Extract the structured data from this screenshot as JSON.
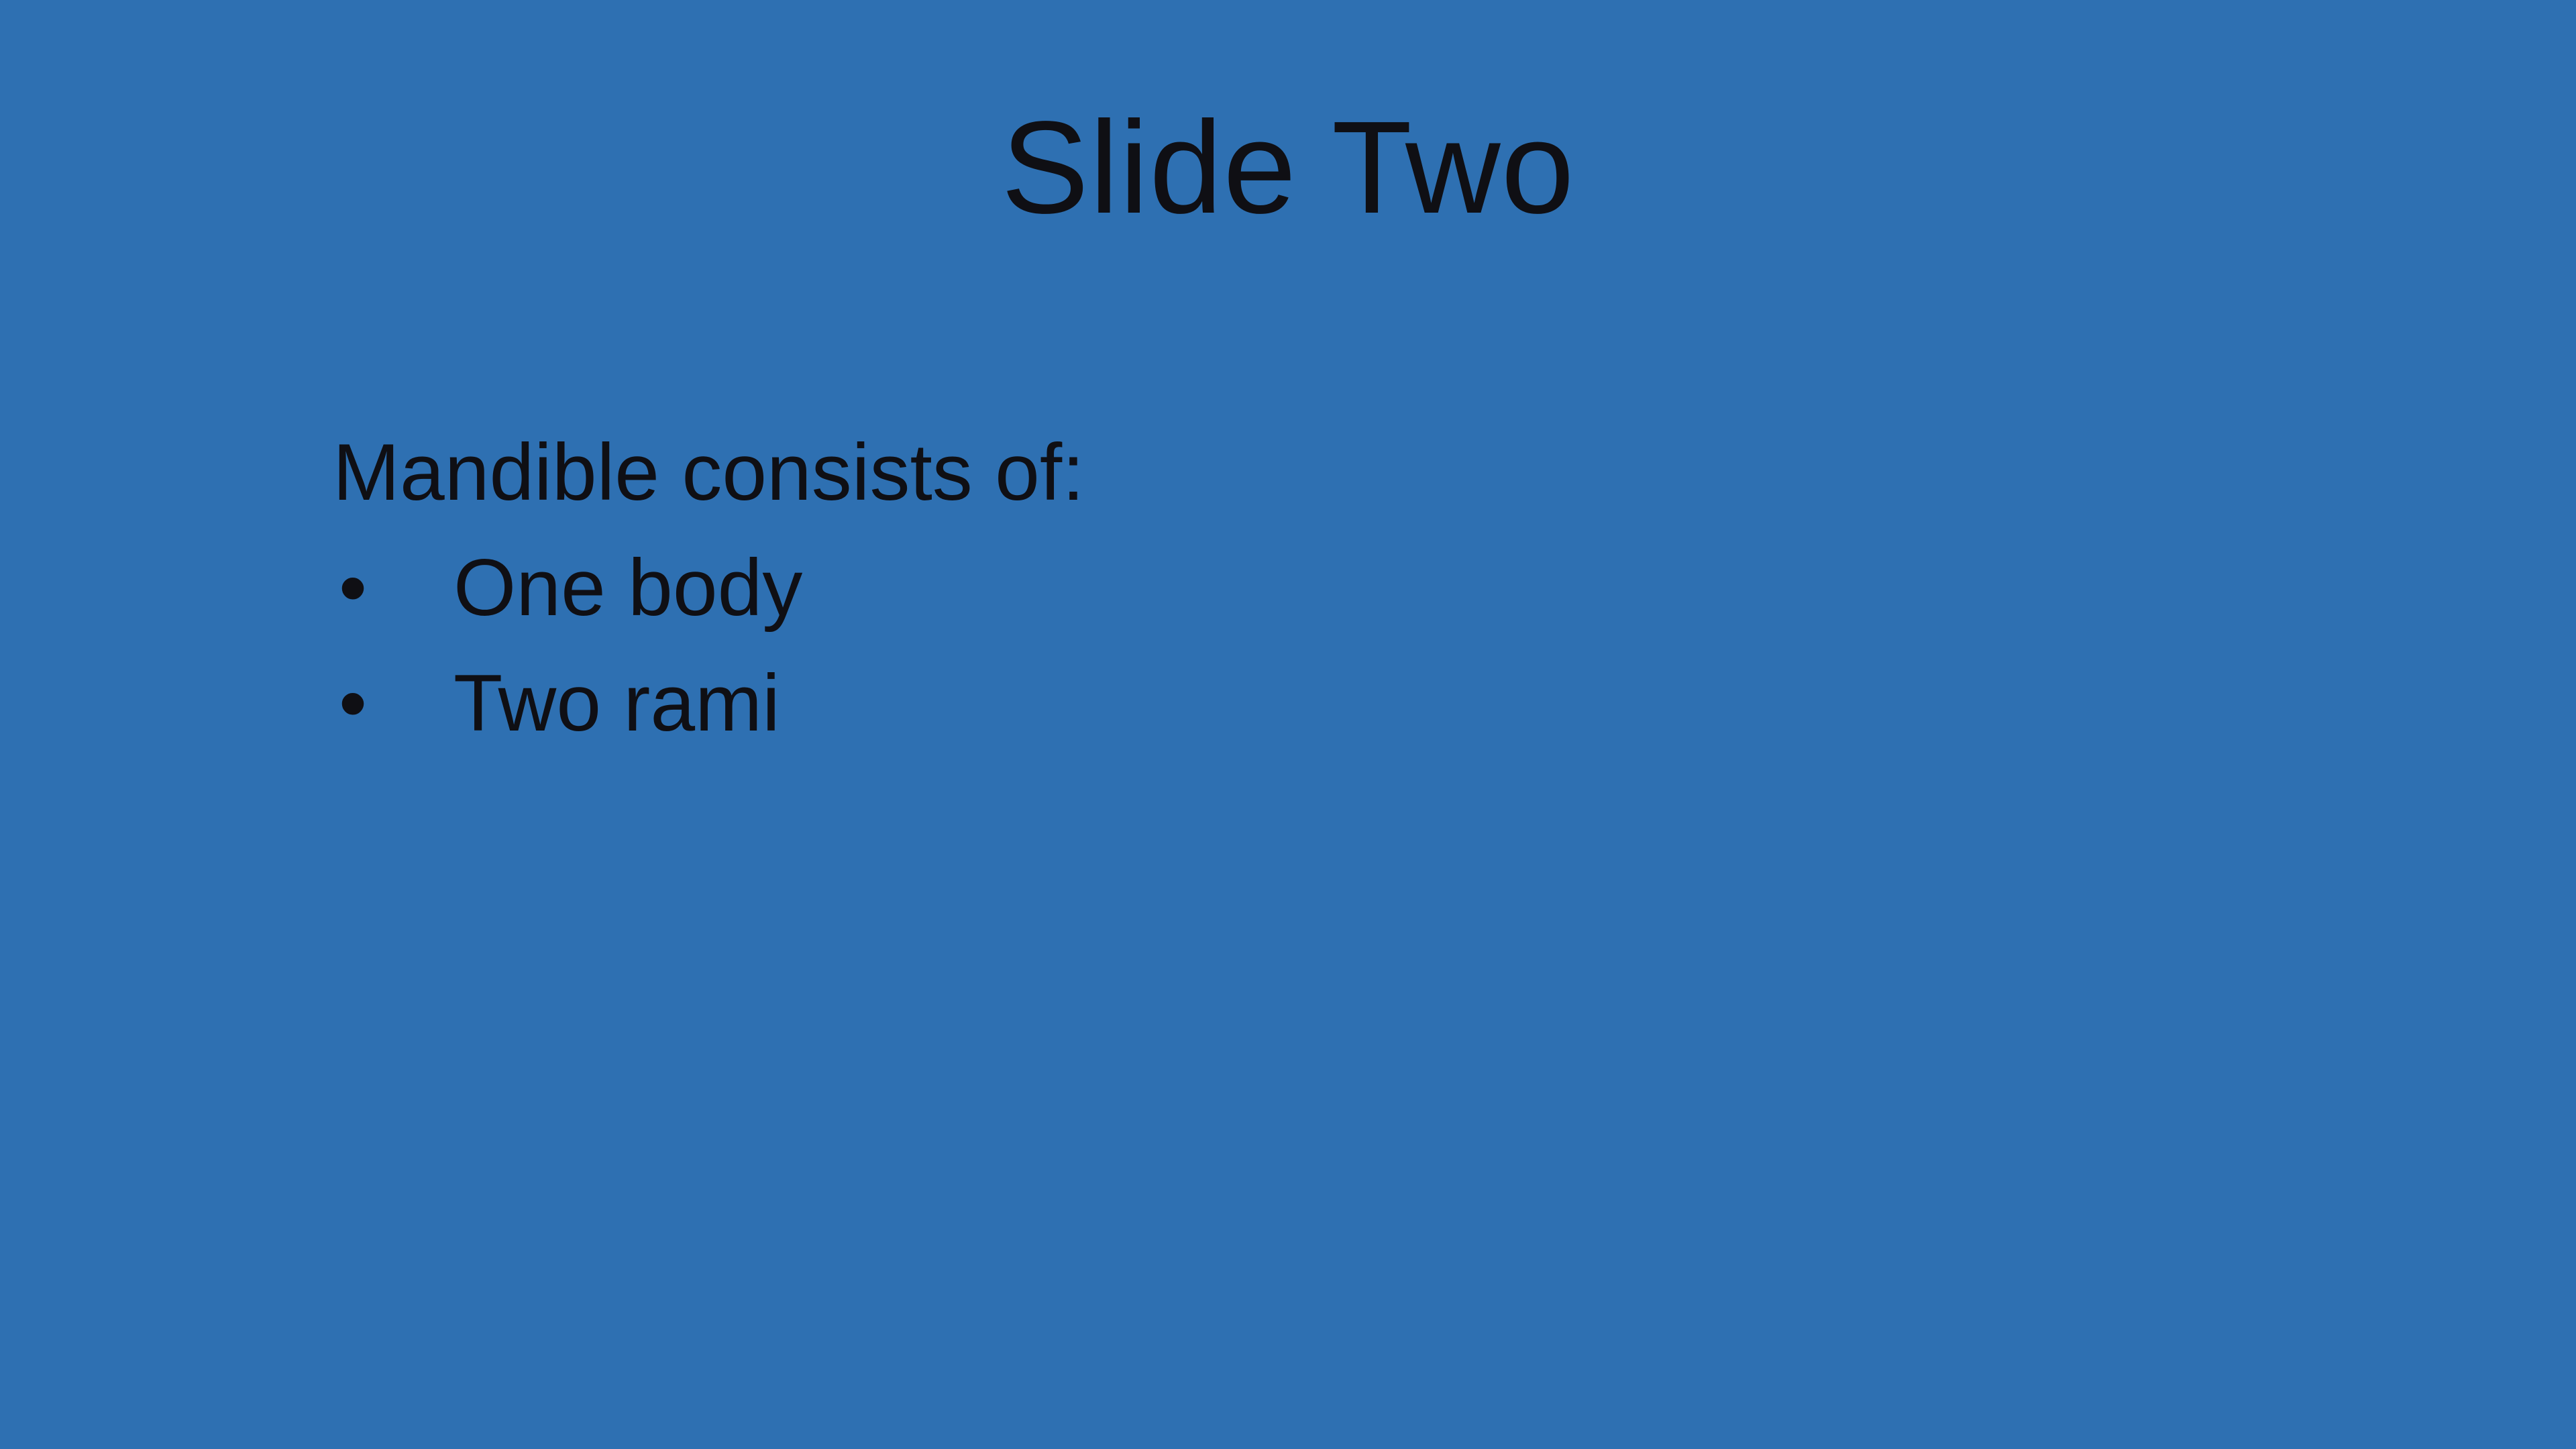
{
  "slide": {
    "title": "Slide Two",
    "intro": "Mandible consists of:",
    "bullet_glyph": "•",
    "bullets": [
      {
        "label": "One body"
      },
      {
        "label": "Two rami"
      }
    ]
  },
  "colors": {
    "background": "#2E70B2",
    "text": "#0F0F14"
  }
}
